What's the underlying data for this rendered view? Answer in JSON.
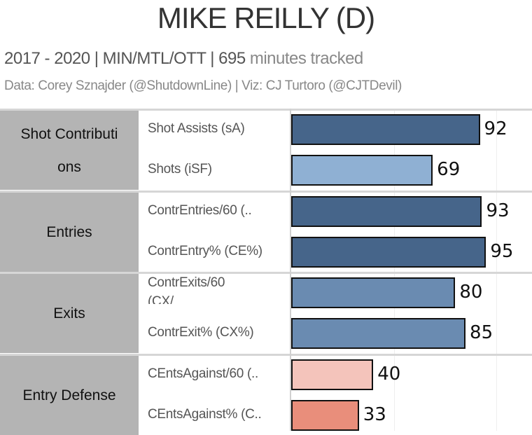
{
  "header": {
    "title": "MIKE REILLY (D)",
    "subtitle_main": "2017 - 2020 |  MIN/MTL/OTT  | 695",
    "subtitle_muted": " minutes tracked",
    "credit": "Data: Corey Sznajder (@ShutdownLine) | Viz: CJ Turtoro (@CJTDevil)"
  },
  "chart_data": {
    "type": "bar",
    "orientation": "horizontal",
    "xlim": [
      0,
      100
    ],
    "gridlines_at": [
      50,
      100
    ],
    "grid": true,
    "groups": [
      {
        "name": "Shot Contributi\nons",
        "rows": [
          {
            "label": "Shot Assists (sA)",
            "value": 92,
            "color": "#46658a"
          },
          {
            "label": "Shots (iSF)",
            "value": 69,
            "color": "#8fb0d3"
          }
        ]
      },
      {
        "name": "Entries",
        "rows": [
          {
            "label": "ContrEntries/60 (..",
            "value": 93,
            "color": "#46658a"
          },
          {
            "label": "ContrEntry% (CE%)",
            "value": 95,
            "color": "#46658a"
          }
        ]
      },
      {
        "name": "Exits",
        "rows": [
          {
            "label": "ContrExits/60\n(CX/",
            "value": 80,
            "color": "#6a8bb1"
          },
          {
            "label": "ContrExit% (CX%)",
            "value": 85,
            "color": "#6a8bb1"
          }
        ]
      },
      {
        "name": "Entry Defense",
        "rows": [
          {
            "label": "CEntsAgainst/60 (..",
            "value": 40,
            "color": "#f4c4bb"
          },
          {
            "label": "CEntsAgainst% (C..",
            "value": 33,
            "color": "#e98e7b"
          }
        ]
      }
    ]
  }
}
